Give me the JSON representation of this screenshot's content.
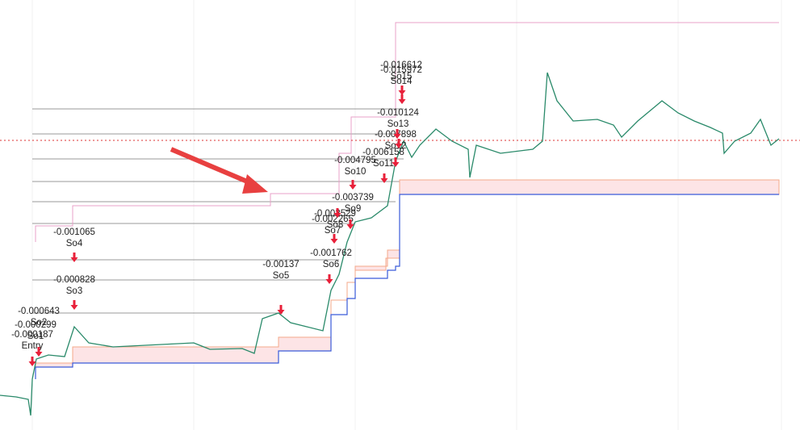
{
  "orders": [
    {
      "label": "Entry",
      "value": "-0.000187"
    },
    {
      "label": "So1",
      "value": "-0.000299"
    },
    {
      "label": "So2",
      "value": "-0.000643"
    },
    {
      "label": "So3",
      "value": "-0.000828"
    },
    {
      "label": "So4",
      "value": "-0.001065"
    },
    {
      "label": "So5",
      "value": "-0.00137"
    },
    {
      "label": "So6",
      "value": "-0.001762"
    },
    {
      "label": "So7",
      "value": "-0.002265"
    },
    {
      "label": "So8",
      "value": "-0.002529"
    },
    {
      "label": "So9",
      "value": "-0.003739"
    },
    {
      "label": "So10",
      "value": "-0.004795"
    },
    {
      "label": "So11",
      "value": "-0.006158"
    },
    {
      "label": "So12",
      "value": "-0.007898"
    },
    {
      "label": "So13",
      "value": "-0.010124"
    },
    {
      "label": "So14",
      "value": "-0.015972"
    },
    {
      "label": "So15",
      "value": "-0.016612"
    }
  ]
}
